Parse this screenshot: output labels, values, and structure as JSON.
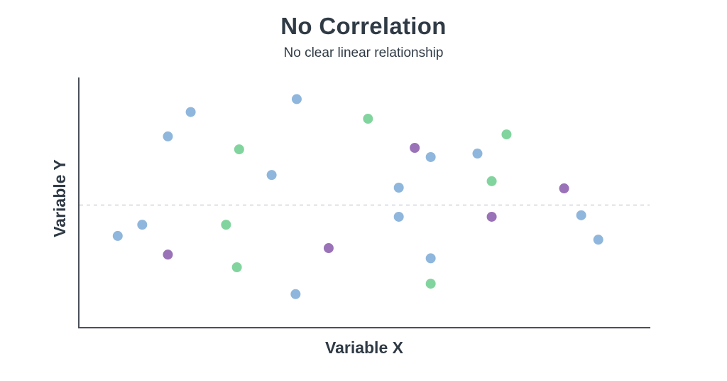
{
  "chart_data": {
    "type": "scatter",
    "title": "No Correlation",
    "subtitle": "No clear linear relationship",
    "xlabel": "Variable X",
    "ylabel": "Variable Y",
    "xlim": [
      0,
      100
    ],
    "ylim": [
      0,
      100
    ],
    "grid": false,
    "legend": "none",
    "reference_line": {
      "orientation": "horizontal",
      "y": 49,
      "style": "dashed",
      "color": "#cfd6dc"
    },
    "colors": {
      "blue": "#8fb6dc",
      "green": "#82d49e",
      "purple": "#9a72b8",
      "axis": "#4a5058",
      "text": "#2f3a45"
    },
    "points": [
      {
        "x": 6.7,
        "y": 36.6,
        "color": "blue"
      },
      {
        "x": 11.0,
        "y": 41.1,
        "color": "blue"
      },
      {
        "x": 15.5,
        "y": 76.6,
        "color": "blue"
      },
      {
        "x": 19.5,
        "y": 86.4,
        "color": "blue"
      },
      {
        "x": 33.7,
        "y": 61.1,
        "color": "blue"
      },
      {
        "x": 38.1,
        "y": 91.6,
        "color": "blue"
      },
      {
        "x": 37.9,
        "y": 13.2,
        "color": "blue"
      },
      {
        "x": 56.0,
        "y": 56.0,
        "color": "blue"
      },
      {
        "x": 56.0,
        "y": 44.3,
        "color": "blue"
      },
      {
        "x": 61.6,
        "y": 68.3,
        "color": "blue"
      },
      {
        "x": 61.6,
        "y": 27.6,
        "color": "blue"
      },
      {
        "x": 69.8,
        "y": 69.7,
        "color": "blue"
      },
      {
        "x": 88.0,
        "y": 44.9,
        "color": "blue"
      },
      {
        "x": 91.0,
        "y": 35.1,
        "color": "blue"
      },
      {
        "x": 28.0,
        "y": 71.4,
        "color": "green"
      },
      {
        "x": 25.7,
        "y": 41.1,
        "color": "green"
      },
      {
        "x": 27.6,
        "y": 24.0,
        "color": "green"
      },
      {
        "x": 50.6,
        "y": 83.7,
        "color": "green"
      },
      {
        "x": 61.6,
        "y": 17.4,
        "color": "green"
      },
      {
        "x": 72.3,
        "y": 58.6,
        "color": "green"
      },
      {
        "x": 74.9,
        "y": 77.4,
        "color": "green"
      },
      {
        "x": 15.5,
        "y": 29.1,
        "color": "purple"
      },
      {
        "x": 43.7,
        "y": 31.7,
        "color": "purple"
      },
      {
        "x": 58.8,
        "y": 72.0,
        "color": "purple"
      },
      {
        "x": 72.3,
        "y": 44.3,
        "color": "purple"
      },
      {
        "x": 85.0,
        "y": 55.7,
        "color": "purple"
      }
    ]
  }
}
